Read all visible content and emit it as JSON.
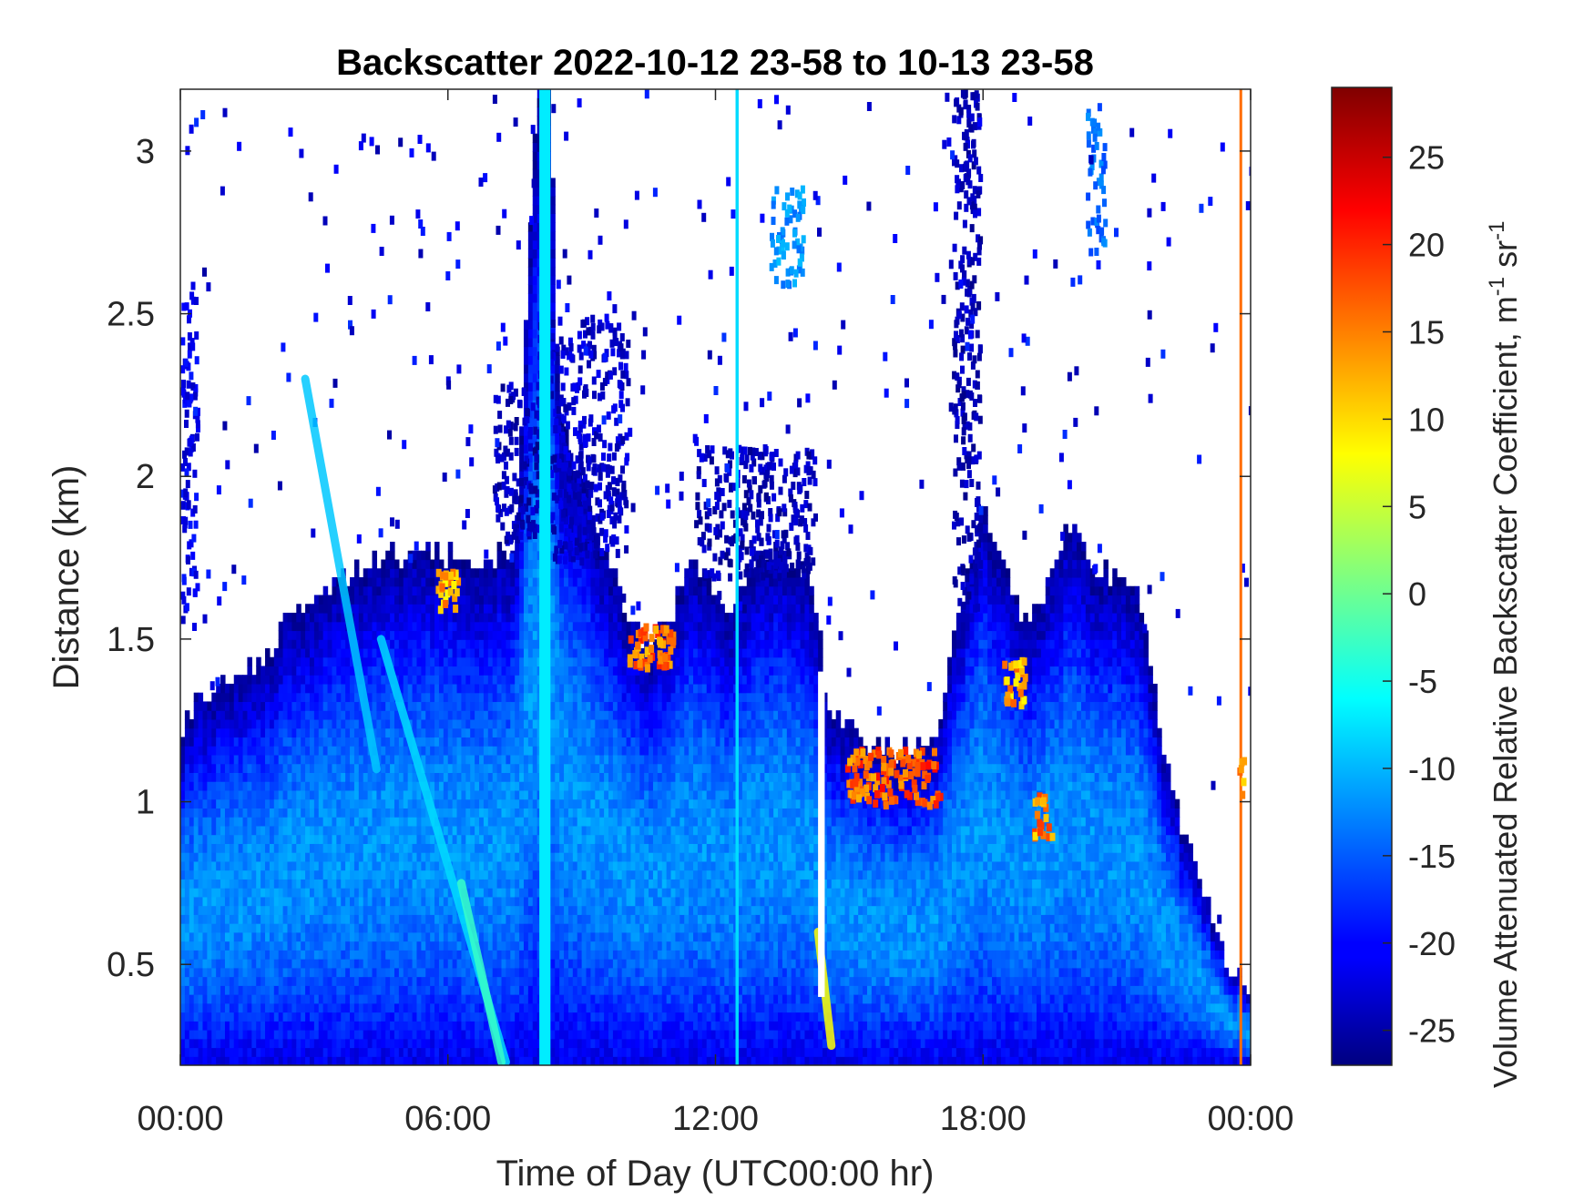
{
  "chart_data": {
    "type": "heatmap",
    "title": "Backscatter 2022-10-12 23-58 to 10-13 23-58",
    "xlabel": "Time of Day (UTC00:00 hr)",
    "ylabel": "Distance (km)",
    "colorbar_label": "Volume Attenuated Relative Backscatter Coefficient, m",
    "colorbar_label_sup1": "-1",
    "colorbar_label_mid": " sr",
    "colorbar_label_sup2": "-1",
    "x_hours_range": [
      0,
      24
    ],
    "ylim": [
      0.19,
      3.19
    ],
    "clim": [
      -27,
      29
    ],
    "colormap": "jet",
    "x_ticks": [
      {
        "hour": 0,
        "label": "00:00"
      },
      {
        "hour": 6,
        "label": "06:00"
      },
      {
        "hour": 12,
        "label": "12:00"
      },
      {
        "hour": 18,
        "label": "18:00"
      },
      {
        "hour": 24,
        "label": "00:00"
      }
    ],
    "y_ticks": [
      {
        "value": 0.5,
        "label": "0.5"
      },
      {
        "value": 1,
        "label": "1"
      },
      {
        "value": 1.5,
        "label": "1.5"
      },
      {
        "value": 2,
        "label": "2"
      },
      {
        "value": 2.5,
        "label": "2.5"
      },
      {
        "value": 3,
        "label": "3"
      }
    ],
    "colorbar_ticks": [
      {
        "value": -25,
        "label": "-25"
      },
      {
        "value": -20,
        "label": "-20"
      },
      {
        "value": -15,
        "label": "-15"
      },
      {
        "value": -10,
        "label": "-10"
      },
      {
        "value": -5,
        "label": "-5"
      },
      {
        "value": 0,
        "label": "0"
      },
      {
        "value": 5,
        "label": "5"
      },
      {
        "value": 10,
        "label": "10"
      },
      {
        "value": 15,
        "label": "15"
      },
      {
        "value": 20,
        "label": "20"
      },
      {
        "value": 25,
        "label": "25"
      }
    ],
    "top_of_signal_km": [
      [
        0.0,
        1.2
      ],
      [
        0.5,
        1.32
      ],
      [
        1.0,
        1.35
      ],
      [
        1.5,
        1.4
      ],
      [
        2.0,
        1.45
      ],
      [
        2.5,
        1.55
      ],
      [
        3.0,
        1.6
      ],
      [
        3.5,
        1.65
      ],
      [
        4.0,
        1.7
      ],
      [
        4.5,
        1.72
      ],
      [
        5.0,
        1.75
      ],
      [
        5.5,
        1.75
      ],
      [
        6.0,
        1.75
      ],
      [
        6.5,
        1.72
      ],
      [
        7.0,
        1.75
      ],
      [
        7.5,
        1.75
      ],
      [
        8.0,
        3.19
      ],
      [
        8.3,
        3.19
      ],
      [
        8.5,
        2.15
      ],
      [
        9.0,
        2.0
      ],
      [
        9.5,
        1.75
      ],
      [
        10.0,
        1.58
      ],
      [
        10.5,
        1.45
      ],
      [
        11.0,
        1.55
      ],
      [
        11.5,
        1.75
      ],
      [
        12.0,
        1.6
      ],
      [
        12.3,
        1.55
      ],
      [
        12.5,
        1.6
      ],
      [
        13.0,
        1.75
      ],
      [
        13.5,
        1.75
      ],
      [
        14.0,
        1.7
      ],
      [
        14.3,
        1.55
      ],
      [
        14.5,
        1.3
      ],
      [
        15.0,
        1.2
      ],
      [
        15.5,
        1.18
      ],
      [
        16.0,
        1.15
      ],
      [
        16.5,
        1.15
      ],
      [
        17.0,
        1.2
      ],
      [
        17.5,
        1.6
      ],
      [
        18.0,
        1.9
      ],
      [
        18.5,
        1.7
      ],
      [
        19.0,
        1.5
      ],
      [
        19.5,
        1.7
      ],
      [
        20.0,
        1.85
      ],
      [
        20.5,
        1.7
      ],
      [
        21.0,
        1.7
      ],
      [
        21.5,
        1.6
      ],
      [
        22.0,
        1.2
      ],
      [
        22.5,
        0.9
      ],
      [
        23.0,
        0.7
      ],
      [
        23.5,
        0.5
      ],
      [
        24.0,
        0.4
      ]
    ],
    "elevated_layers": [
      {
        "hour_start": 0.0,
        "hour_end": 0.35,
        "km_bottom": 1.5,
        "km_top": 2.6,
        "level": -21
      },
      {
        "hour_start": 7.0,
        "hour_end": 8.0,
        "km_bottom": 1.8,
        "km_top": 2.3,
        "level": -24
      },
      {
        "hour_start": 8.0,
        "hour_end": 10.0,
        "km_bottom": 1.75,
        "km_top": 2.5,
        "level": -23
      },
      {
        "hour_start": 11.5,
        "hour_end": 14.2,
        "km_bottom": 1.7,
        "km_top": 2.1,
        "level": -24
      },
      {
        "hour_start": 13.2,
        "hour_end": 14.0,
        "km_bottom": 2.6,
        "km_top": 2.9,
        "level": -12
      },
      {
        "hour_start": 17.3,
        "hour_end": 17.9,
        "km_bottom": 1.6,
        "km_top": 3.19,
        "level": -24
      },
      {
        "hour_start": 20.3,
        "hour_end": 20.7,
        "km_bottom": 2.7,
        "km_top": 3.15,
        "level": -14
      }
    ],
    "columns": [
      {
        "hour": 8.05,
        "hour_end": 8.3,
        "km_bottom": 0.19,
        "km_top": 3.19,
        "level": -7
      },
      {
        "hour": 12.45,
        "hour_end": 12.52,
        "km_bottom": 0.19,
        "km_top": 3.19,
        "level": -8
      },
      {
        "hour": 14.3,
        "hour_end": 14.45,
        "km_bottom": 0.4,
        "km_top": 1.4,
        "level": 99
      },
      {
        "hour": 23.75,
        "hour_end": 23.8,
        "km_bottom": 0.19,
        "km_top": 3.19,
        "level": 16
      }
    ],
    "hotspots": [
      {
        "hour_start": 5.7,
        "hour_end": 6.2,
        "km_bottom": 1.6,
        "km_top": 1.72,
        "level": 12
      },
      {
        "hour_start": 10.0,
        "hour_end": 11.0,
        "km_bottom": 1.42,
        "km_top": 1.55,
        "level": 16
      },
      {
        "hour_start": 14.9,
        "hour_end": 17.0,
        "km_bottom": 1.0,
        "km_top": 1.17,
        "level": 17
      },
      {
        "hour_start": 18.4,
        "hour_end": 18.9,
        "km_bottom": 1.3,
        "km_top": 1.45,
        "level": 12
      },
      {
        "hour_start": 19.1,
        "hour_end": 19.5,
        "km_bottom": 0.9,
        "km_top": 1.05,
        "level": 14
      },
      {
        "hour_start": 23.7,
        "hour_end": 23.8,
        "km_bottom": 1.0,
        "km_top": 1.15,
        "level": 12
      }
    ],
    "streaks": [
      {
        "h0": 2.8,
        "k0": 2.3,
        "h1": 4.4,
        "k1": 1.1,
        "level": -9
      },
      {
        "h0": 4.5,
        "k0": 1.5,
        "h1": 7.3,
        "k1": 0.2,
        "level": -8
      },
      {
        "h0": 6.3,
        "k0": 0.75,
        "h1": 7.2,
        "k1": 0.2,
        "level": -3
      },
      {
        "h0": 14.3,
        "k0": 0.6,
        "h1": 14.6,
        "k1": 0.25,
        "level": 8
      }
    ]
  }
}
